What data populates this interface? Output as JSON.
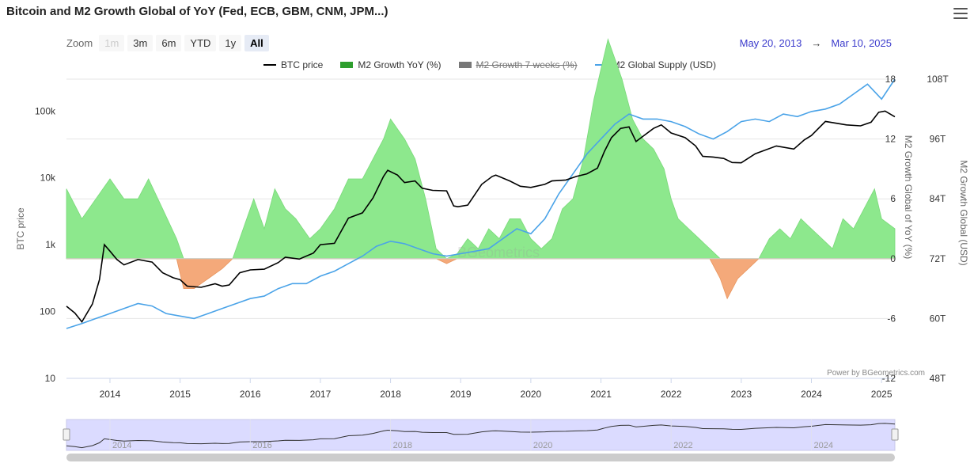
{
  "title": "Bitcoin and M2 Growth Global of YoY (Fed, ECB, GBM, CNM, JPM...)",
  "toolbar": {
    "zoom_label": "Zoom",
    "buttons": [
      {
        "label": "1m",
        "state": "disabled"
      },
      {
        "label": "3m",
        "state": "normal"
      },
      {
        "label": "6m",
        "state": "normal"
      },
      {
        "label": "YTD",
        "state": "normal"
      },
      {
        "label": "1y",
        "state": "normal"
      },
      {
        "label": "All",
        "state": "active"
      }
    ],
    "date_from": "May 20, 2013",
    "date_arrow": "→",
    "date_to": "Mar 10, 2025"
  },
  "legend": [
    {
      "label": "BTC price",
      "color": "#000000",
      "symbol": "line",
      "hidden": false
    },
    {
      "label": "M2 Growth YoY (%)",
      "color": "#2e9e2e",
      "symbol": "area",
      "hidden": false
    },
    {
      "label": "M2 Growth 7 weeks (%)",
      "color": "#777777",
      "symbol": "area",
      "hidden": true
    },
    {
      "label": "M2 Global Supply (USD)",
      "color": "#4aa3e8",
      "symbol": "line",
      "hidden": false
    }
  ],
  "credit": "Power by BGeometrics.com",
  "watermark": "BGeometrics",
  "chart_data": {
    "type": "line",
    "title": "Bitcoin and M2 Growth Global of YoY (Fed, ECB, GBM, CNM, JPM...)",
    "x_range": [
      2013.38,
      2025.19
    ],
    "x_ticks": [
      "2014",
      "2015",
      "2016",
      "2017",
      "2018",
      "2019",
      "2020",
      "2021",
      "2022",
      "2023",
      "2024",
      "2025"
    ],
    "y_axes": [
      {
        "name": "BTC price",
        "position": "left",
        "scale": "log",
        "range": [
          10,
          300000
        ],
        "ticks": [
          "10",
          "100",
          "1k",
          "10k",
          "100k"
        ],
        "label": "BTC price"
      },
      {
        "name": "M2 Growth Global of YoY (%)",
        "position": "right-inner",
        "range": [
          -12,
          18
        ],
        "ticks": [
          "-12",
          "-6",
          "0",
          "6",
          "12",
          "18"
        ],
        "label": "M2 Growth Global of YoY (%)"
      },
      {
        "name": "M2 Growth Global (USD)",
        "position": "right-outer",
        "range": [
          48,
          108
        ],
        "ticks": [
          "48T",
          "60T",
          "72T",
          "84T",
          "96T",
          "108T"
        ],
        "label": "M2 Growth Global (USD)"
      }
    ],
    "series": [
      {
        "name": "BTC price",
        "axis": 0,
        "color": "#000000",
        "type": "line",
        "x": [
          2013.38,
          2013.5,
          2013.6,
          2013.75,
          2013.85,
          2013.92,
          2014.0,
          2014.1,
          2014.2,
          2014.4,
          2014.6,
          2014.75,
          2014.9,
          2015.0,
          2015.1,
          2015.3,
          2015.5,
          2015.6,
          2015.7,
          2015.85,
          2016.0,
          2016.2,
          2016.4,
          2016.5,
          2016.7,
          2016.9,
          2017.0,
          2017.2,
          2017.4,
          2017.6,
          2017.75,
          2017.9,
          2017.96,
          2018.1,
          2018.2,
          2018.35,
          2018.45,
          2018.6,
          2018.8,
          2018.9,
          2018.96,
          2019.1,
          2019.3,
          2019.45,
          2019.5,
          2019.7,
          2019.85,
          2020.0,
          2020.2,
          2020.3,
          2020.5,
          2020.65,
          2020.8,
          2020.95,
          2021.05,
          2021.15,
          2021.28,
          2021.4,
          2021.5,
          2021.6,
          2021.75,
          2021.86,
          2022.0,
          2022.2,
          2022.35,
          2022.45,
          2022.6,
          2022.75,
          2022.87,
          2023.0,
          2023.2,
          2023.5,
          2023.75,
          2023.9,
          2024.0,
          2024.2,
          2024.5,
          2024.7,
          2024.85,
          2024.96,
          2025.05,
          2025.19
        ],
        "values": [
          120,
          95,
          70,
          130,
          300,
          1000,
          800,
          600,
          500,
          600,
          550,
          380,
          320,
          300,
          240,
          230,
          260,
          240,
          250,
          380,
          420,
          430,
          540,
          650,
          610,
          750,
          1000,
          1050,
          2500,
          3000,
          5000,
          10500,
          13000,
          11000,
          8500,
          9000,
          7000,
          6500,
          6400,
          3800,
          3700,
          3900,
          8000,
          10500,
          11000,
          9000,
          7500,
          7200,
          8000,
          9000,
          9300,
          10500,
          11500,
          14000,
          25000,
          40000,
          55000,
          58000,
          35000,
          42000,
          55000,
          62000,
          47000,
          40000,
          30000,
          21000,
          20500,
          19500,
          17000,
          16800,
          23000,
          30000,
          27000,
          37000,
          43000,
          70000,
          62000,
          60000,
          68000,
          96000,
          100000,
          82000
        ]
      },
      {
        "name": "M2 Growth YoY (%)",
        "axis": 1,
        "color": "#8de88d",
        "negative_color": "#f4a97a",
        "type": "area",
        "x": [
          2013.38,
          2013.6,
          2013.8,
          2014.0,
          2014.2,
          2014.4,
          2014.55,
          2014.75,
          2014.95,
          2015.05,
          2015.2,
          2015.4,
          2015.6,
          2015.75,
          2015.9,
          2016.05,
          2016.2,
          2016.35,
          2016.5,
          2016.65,
          2016.85,
          2017.0,
          2017.2,
          2017.4,
          2017.6,
          2017.75,
          2017.9,
          2018.0,
          2018.1,
          2018.2,
          2018.35,
          2018.5,
          2018.65,
          2018.8,
          2018.95,
          2019.1,
          2019.25,
          2019.4,
          2019.55,
          2019.7,
          2019.85,
          2020.0,
          2020.15,
          2020.3,
          2020.45,
          2020.6,
          2020.75,
          2020.9,
          2021.0,
          2021.1,
          2021.2,
          2021.3,
          2021.45,
          2021.6,
          2021.75,
          2021.9,
          2022.0,
          2022.1,
          2022.25,
          2022.4,
          2022.55,
          2022.7,
          2022.8,
          2022.95,
          2023.1,
          2023.25,
          2023.4,
          2023.55,
          2023.7,
          2023.85,
          2024.0,
          2024.15,
          2024.3,
          2024.45,
          2024.6,
          2024.75,
          2024.9,
          2025.0,
          2025.19
        ],
        "values": [
          7,
          4,
          6,
          8,
          6,
          6,
          8,
          5,
          2,
          -3,
          -3,
          -2,
          -1,
          0,
          3,
          6,
          3,
          7,
          5,
          4,
          2,
          3,
          5,
          8,
          8,
          10,
          12,
          14,
          13,
          12,
          10,
          6,
          1,
          -0.5,
          0.5,
          2,
          1,
          3,
          2,
          4,
          4,
          2,
          1,
          2,
          5,
          6,
          10,
          16,
          19,
          22,
          20,
          18,
          14,
          12,
          11,
          9,
          6,
          4,
          3,
          2,
          1,
          -2,
          -4,
          -2,
          -1,
          0,
          2,
          3,
          2,
          4,
          3,
          2,
          1,
          4,
          3,
          5,
          7,
          4,
          3
        ]
      },
      {
        "name": "M2 Global Supply (USD)",
        "axis": 2,
        "color": "#4aa3e8",
        "type": "line",
        "x": [
          2013.38,
          2013.6,
          2013.8,
          2014.0,
          2014.2,
          2014.4,
          2014.6,
          2014.8,
          2015.0,
          2015.2,
          2015.4,
          2015.6,
          2015.8,
          2016.0,
          2016.2,
          2016.4,
          2016.6,
          2016.8,
          2017.0,
          2017.2,
          2017.4,
          2017.6,
          2017.8,
          2018.0,
          2018.2,
          2018.4,
          2018.6,
          2018.8,
          2019.0,
          2019.2,
          2019.4,
          2019.6,
          2019.8,
          2020.0,
          2020.2,
          2020.4,
          2020.6,
          2020.8,
          2021.0,
          2021.2,
          2021.4,
          2021.6,
          2021.8,
          2022.0,
          2022.2,
          2022.4,
          2022.6,
          2022.8,
          2023.0,
          2023.2,
          2023.4,
          2023.6,
          2023.8,
          2024.0,
          2024.2,
          2024.4,
          2024.6,
          2024.8,
          2025.0,
          2025.19
        ],
        "values": [
          58,
          59,
          60,
          61,
          62,
          63,
          62.5,
          61,
          60.5,
          60,
          61,
          62,
          63,
          64,
          64.5,
          66,
          67,
          67,
          68.5,
          69.5,
          71,
          72.5,
          74.5,
          75.5,
          75,
          74,
          73,
          72.5,
          73,
          73.5,
          74,
          76,
          78,
          77,
          80,
          85,
          89,
          93,
          96,
          99,
          101,
          100,
          100,
          99.5,
          98.5,
          97,
          96,
          97.5,
          99.5,
          100,
          99.5,
          101,
          100.5,
          101.5,
          102,
          103,
          105,
          107,
          104,
          108
        ]
      }
    ],
    "zero_line_value": 0,
    "navigator": {
      "ticks": [
        "2014",
        "2016",
        "2018",
        "2020",
        "2022",
        "2024"
      ]
    }
  }
}
